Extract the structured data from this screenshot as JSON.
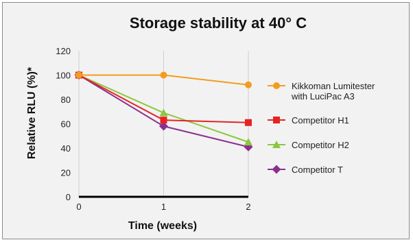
{
  "chart_data": {
    "type": "line",
    "title": "Storage stability at 40° C",
    "xlabel": "Time (weeks)",
    "ylabel": "Relative RLU (%)*",
    "x": [
      0,
      1,
      2
    ],
    "x_ticks": [
      "0",
      "1",
      "2"
    ],
    "y_ticks": [
      "0",
      "20",
      "40",
      "60",
      "80",
      "100",
      "120"
    ],
    "xlim": [
      0,
      2
    ],
    "ylim": [
      0,
      120
    ],
    "grid": "vertical",
    "legend_position": "right",
    "series": [
      {
        "name": "Kikkoman Lumitester with LuciPac A3",
        "legend_lines": [
          "Kikkoman Lumitester",
          "with LuciPac A3"
        ],
        "values": [
          100,
          100,
          92
        ],
        "color": "#f39c1f",
        "marker": "circle"
      },
      {
        "name": "Competitor H1",
        "legend_lines": [
          "Competitor H1"
        ],
        "values": [
          100,
          63,
          61
        ],
        "color": "#e52421",
        "marker": "square"
      },
      {
        "name": "Competitor H2",
        "legend_lines": [
          "Competitor H2"
        ],
        "values": [
          100,
          69,
          45
        ],
        "color": "#8dc63f",
        "marker": "triangle"
      },
      {
        "name": "Competitor T",
        "legend_lines": [
          "Competitor T"
        ],
        "values": [
          100,
          58,
          41
        ],
        "color": "#8b2f8f",
        "marker": "diamond"
      }
    ]
  }
}
